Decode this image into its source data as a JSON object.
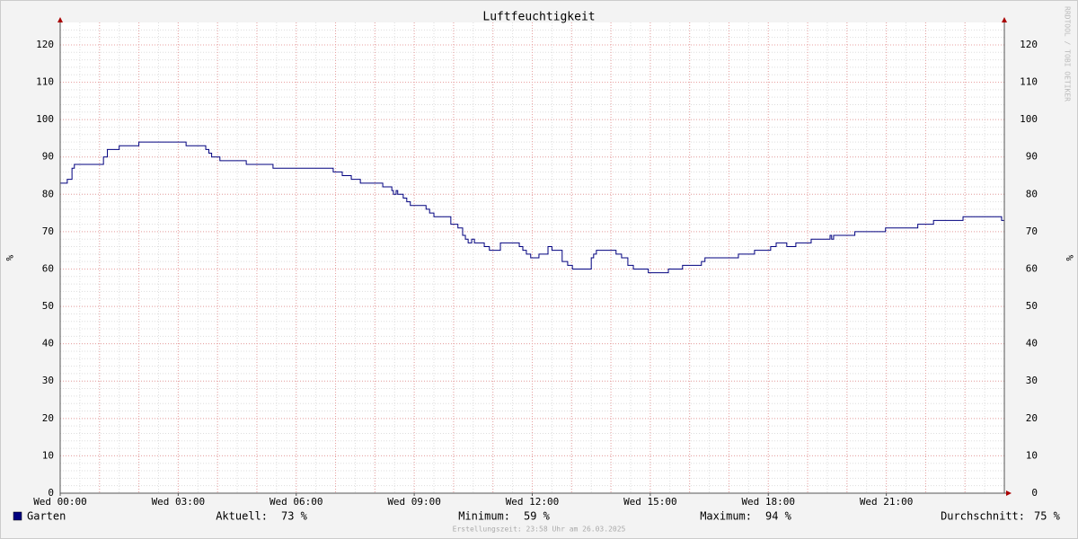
{
  "chart_data": {
    "type": "line",
    "title": "Luftfeuchtigkeit",
    "ylabel": "%",
    "step": true,
    "grid": true,
    "x": [
      0,
      0.18,
      0.3,
      0.36,
      1.1,
      1.2,
      1.5,
      2.0,
      3.2,
      3.7,
      3.78,
      3.85,
      4.06,
      4.73,
      5.41,
      6.94,
      7.17,
      7.4,
      7.63,
      8.2,
      8.43,
      8.47,
      8.54,
      8.58,
      8.72,
      8.81,
      8.9,
      9.3,
      9.39,
      9.5,
      9.93,
      10.11,
      10.23,
      10.3,
      10.37,
      10.46,
      10.53,
      10.78,
      10.91,
      11.19,
      11.67,
      11.76,
      11.85,
      11.96,
      12.17,
      12.4,
      12.5,
      12.76,
      12.9,
      13.02,
      13.5,
      13.56,
      13.63,
      14.13,
      14.27,
      14.43,
      14.57,
      14.95,
      15.46,
      15.82,
      16.3,
      16.39,
      17.24,
      17.65,
      18.06,
      18.2,
      18.47,
      18.7,
      19.09,
      19.57,
      19.61,
      19.66,
      20.2,
      20.98,
      21.8,
      22.2,
      22.95,
      23.93
    ],
    "series": [
      {
        "name": "Garten",
        "color": "#00007f",
        "values": [
          83,
          84,
          87,
          88,
          90,
          92,
          93,
          94,
          93,
          92,
          91,
          90,
          89,
          88,
          87,
          86,
          85,
          84,
          83,
          82,
          81,
          80,
          81,
          80,
          79,
          78,
          77,
          76,
          75,
          74,
          72,
          71,
          69,
          68,
          67,
          68,
          67,
          66,
          65,
          67,
          66,
          65,
          64,
          63,
          64,
          66,
          65,
          62,
          61,
          60,
          63,
          64,
          65,
          64,
          63,
          61,
          60,
          59,
          60,
          61,
          62,
          63,
          64,
          65,
          66,
          67,
          66,
          67,
          68,
          69,
          68,
          69,
          70,
          71,
          72,
          73,
          74,
          73
        ]
      }
    ],
    "xlim": [
      0,
      24
    ],
    "ylim": [
      0,
      126
    ],
    "xticks": [
      {
        "value": 0,
        "label": "Wed 00:00"
      },
      {
        "value": 3,
        "label": "Wed 03:00"
      },
      {
        "value": 6,
        "label": "Wed 06:00"
      },
      {
        "value": 9,
        "label": "Wed 09:00"
      },
      {
        "value": 12,
        "label": "Wed 12:00"
      },
      {
        "value": 15,
        "label": "Wed 15:00"
      },
      {
        "value": 18,
        "label": "Wed 18:00"
      },
      {
        "value": 21,
        "label": "Wed 21:00"
      }
    ],
    "xgrid": [
      1,
      2,
      3,
      4,
      5,
      6,
      7,
      8,
      9,
      10,
      11,
      12,
      13,
      14,
      15,
      16,
      17,
      18,
      19,
      20,
      21,
      22,
      23
    ],
    "yticks": [
      0,
      10,
      20,
      30,
      40,
      50,
      60,
      70,
      80,
      90,
      100,
      110,
      120
    ],
    "stats": [
      {
        "label": "Aktuell:",
        "text": "73 %"
      },
      {
        "label": "Minimum:",
        "text": "59 %"
      },
      {
        "label": "Maximum:",
        "text": "94 %"
      },
      {
        "label": "Durchschnitt:",
        "text": "75 %"
      }
    ],
    "footer": "Erstellungszeit: 23:58 Uhr am 26.03.2025",
    "watermark": "RRDTOOL / TOBI OETIKER"
  }
}
